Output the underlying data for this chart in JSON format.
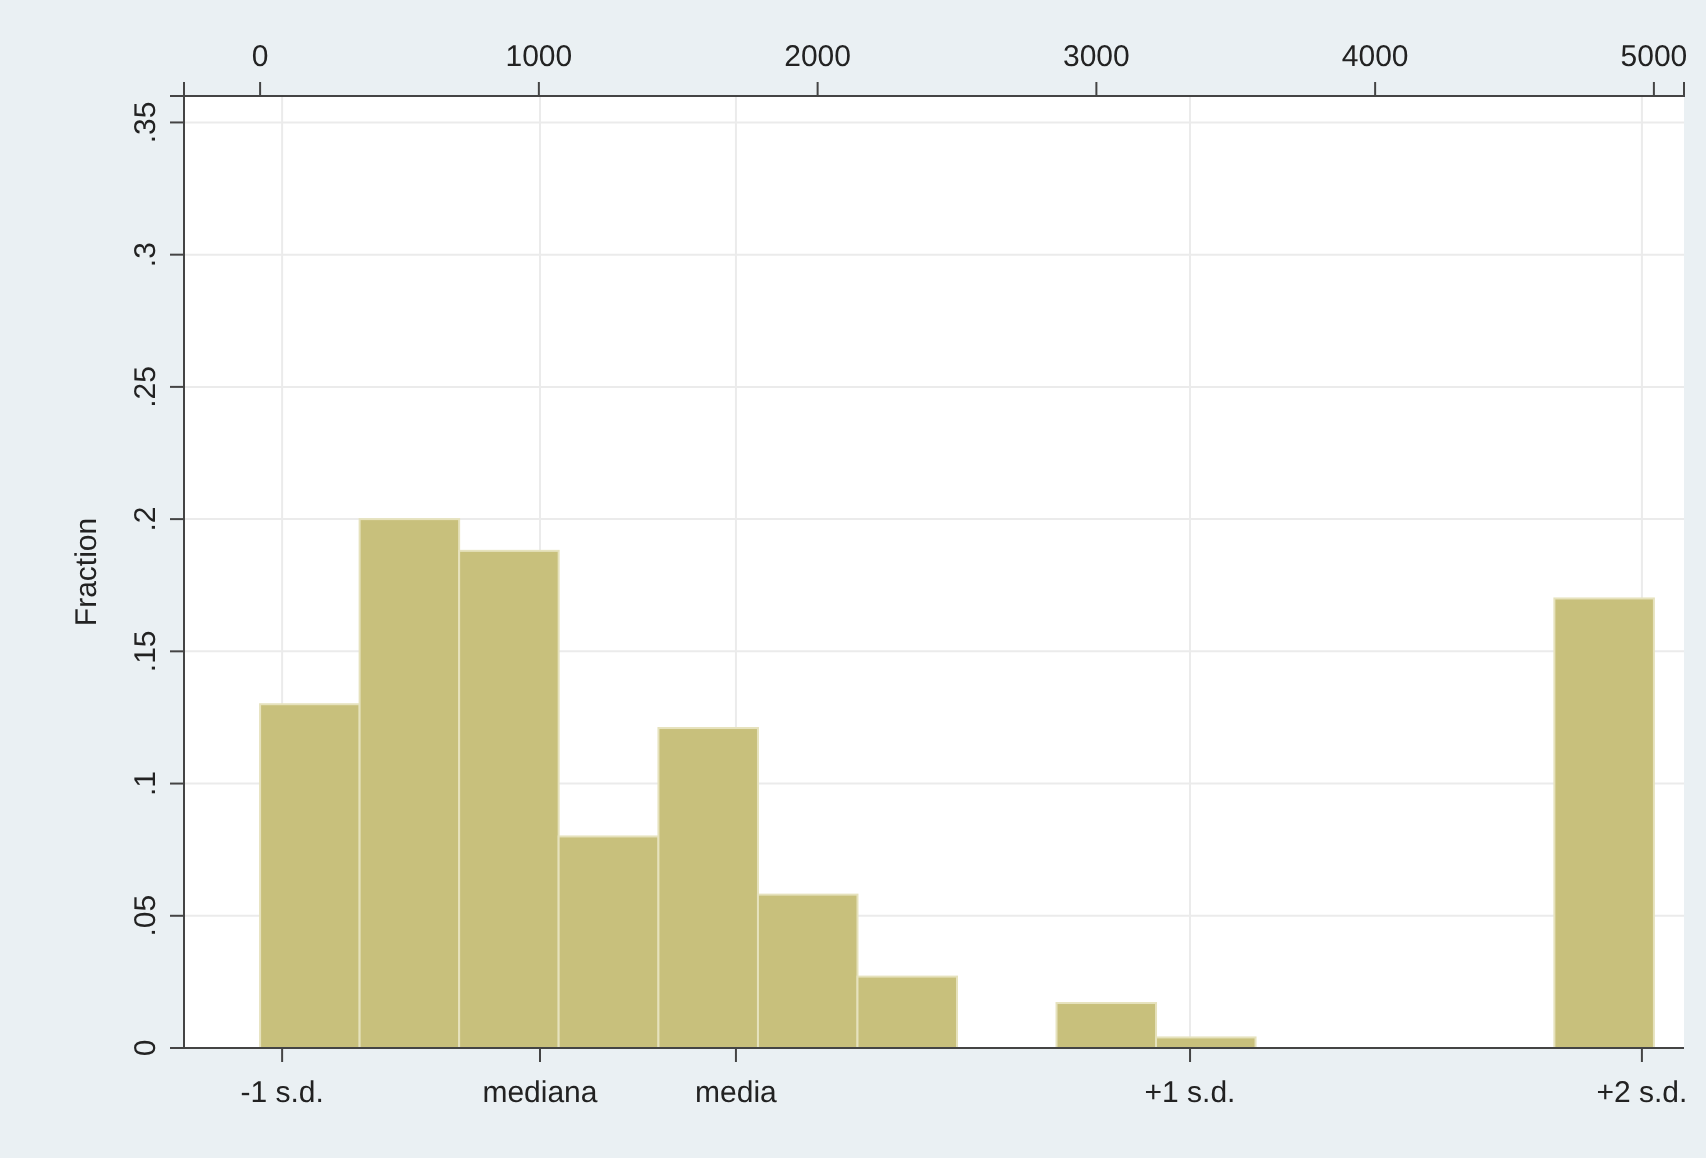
{
  "chart_data": {
    "type": "histogram",
    "ylabel": "Fraction",
    "color": "#c8c07c",
    "bins": [
      0,
      357,
      714,
      1071,
      1429,
      1786,
      2143,
      2500,
      2857,
      3214,
      3571,
      3929,
      4286,
      4643,
      5000
    ],
    "values": [
      0.13,
      0.2,
      0.188,
      0.08,
      0.121,
      0.058,
      0.027,
      0,
      0.017,
      0.004,
      0,
      0,
      0,
      0.17
    ],
    "xlim": [
      -273,
      5108
    ],
    "xticks": [
      0,
      1000,
      2000,
      3000,
      4000,
      5000
    ],
    "ref_lines": [
      {
        "axis": "x",
        "value": 79,
        "label": "-1 s.d.",
        "color": "#ebebeb"
      },
      {
        "axis": "x",
        "value": 1004,
        "label": "mediana",
        "color": "#ebebeb"
      },
      {
        "axis": "x",
        "value": 1707,
        "label": "media",
        "color": "#ebebeb"
      },
      {
        "axis": "x",
        "value": 3336,
        "label": "+1 s.d.",
        "color": "#ebebeb"
      },
      {
        "axis": "x",
        "value": 4957,
        "label": "+2 s.d.",
        "color": "#ebebeb"
      }
    ],
    "ylim": [
      0,
      0.36
    ],
    "yticks": [
      {
        "value": 0,
        "label": "0"
      },
      {
        "value": 0.05,
        "label": ".05"
      },
      {
        "value": 0.1,
        "label": ".1"
      },
      {
        "value": 0.15,
        "label": ".15"
      },
      {
        "value": 0.2,
        "label": ".2"
      },
      {
        "value": 0.25,
        "label": ".25"
      },
      {
        "value": 0.3,
        "label": ".3"
      },
      {
        "value": 0.35,
        "label": ".35"
      }
    ],
    "grid": "y"
  }
}
